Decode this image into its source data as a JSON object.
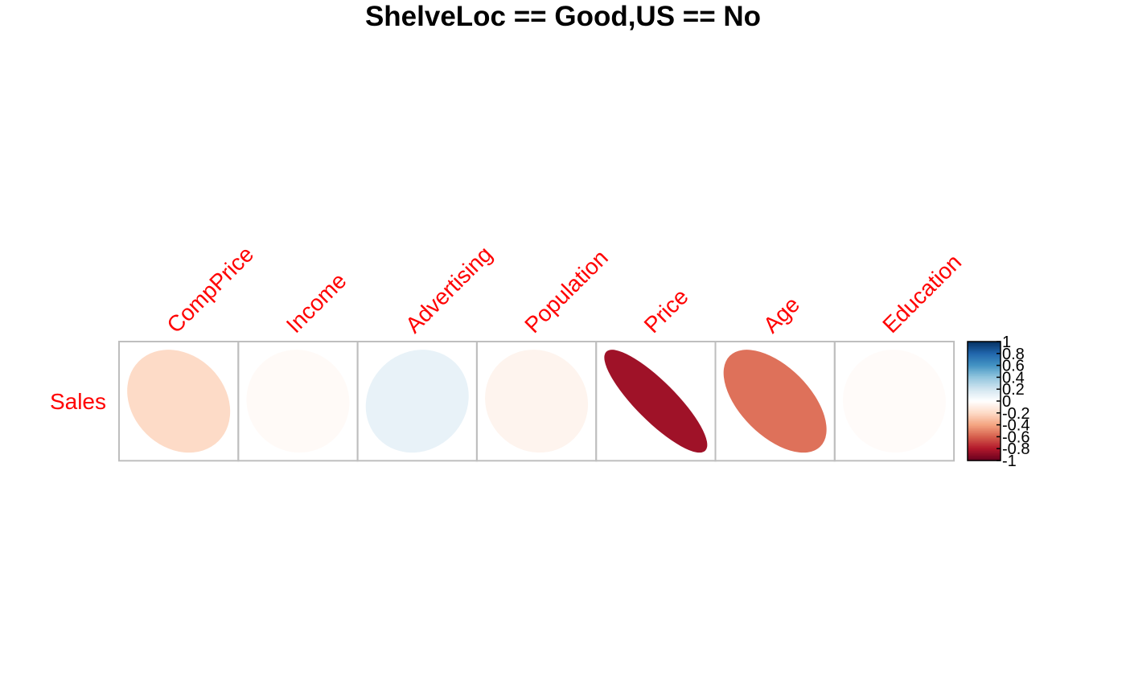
{
  "chart_data": {
    "type": "heatmap",
    "title": "ShelveLoc == Good,US == No",
    "rows": [
      "Sales"
    ],
    "columns": [
      "CompPrice",
      "Income",
      "Advertising",
      "Population",
      "Price",
      "Age",
      "Education"
    ],
    "values": [
      [
        -0.2,
        -0.03,
        0.1,
        -0.06,
        -0.85,
        -0.55,
        -0.02
      ]
    ],
    "method": "ellipse",
    "label_color": "#ff0000",
    "grid_color": "#bebebe",
    "color_scale": {
      "min": -1,
      "max": 1,
      "low_color": "#67001f",
      "mid_color": "#ffffff",
      "high_color": "#053061",
      "ticks": [
        "-1",
        "-0.8",
        "-0.6",
        "-0.4",
        "-0.2",
        "0",
        "0.2",
        "0.4",
        "0.6",
        "0.8",
        "1"
      ]
    }
  }
}
